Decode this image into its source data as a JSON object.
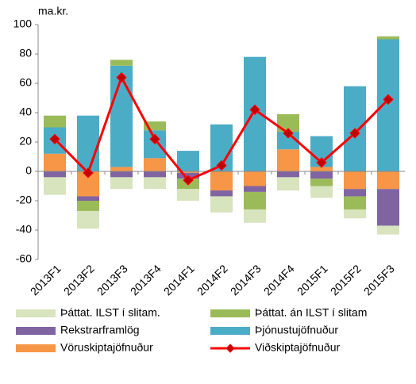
{
  "chart_data": {
    "type": "bar",
    "stacked": true,
    "y_label": "ma.kr.",
    "categories": [
      "2013F1",
      "2013F2",
      "2013F3",
      "2013F4",
      "2014F1",
      "2014F2",
      "2014F3",
      "2014F4",
      "2015F1",
      "2015F2",
      "2015F3"
    ],
    "series": [
      {
        "name": "Þáttat. ILST í slitam.",
        "color": "#d7e4bd",
        "values": [
          -12,
          -12,
          -8,
          -8,
          -8,
          -11,
          -9,
          -9,
          -8,
          -6,
          -6
        ]
      },
      {
        "name": "Þáttat. án ILST í slitam",
        "color": "#9bbb59",
        "values": [
          8,
          -7,
          4,
          6,
          -7,
          0,
          -12,
          12,
          -5,
          -9,
          2
        ]
      },
      {
        "name": "Rekstrarframlög",
        "color": "#8064a2",
        "values": [
          -4,
          -3,
          -4,
          -4,
          -4,
          -4,
          -4,
          -4,
          -5,
          -5,
          -25
        ]
      },
      {
        "name": "Þjónustujöfnuður",
        "color": "#4bacc6",
        "values": [
          18,
          38,
          69,
          19,
          14,
          32,
          78,
          12,
          21,
          58,
          90
        ]
      },
      {
        "name": "Vöruskiptajöfnuður",
        "color": "#f79646",
        "values": [
          12,
          -17,
          3,
          9,
          -1,
          -13,
          -10,
          15,
          3,
          -12,
          -12
        ]
      },
      {
        "name": "Viðskiptajöfnuður",
        "color": "#ff0000",
        "type": "line",
        "values": [
          22,
          -1,
          64,
          22,
          -6,
          4,
          42,
          26,
          6,
          26,
          49
        ]
      }
    ],
    "ylim": [
      -60,
      100
    ],
    "yticks": [
      -60,
      -40,
      -20,
      0,
      20,
      40,
      60,
      80,
      100
    ],
    "grid": false
  }
}
